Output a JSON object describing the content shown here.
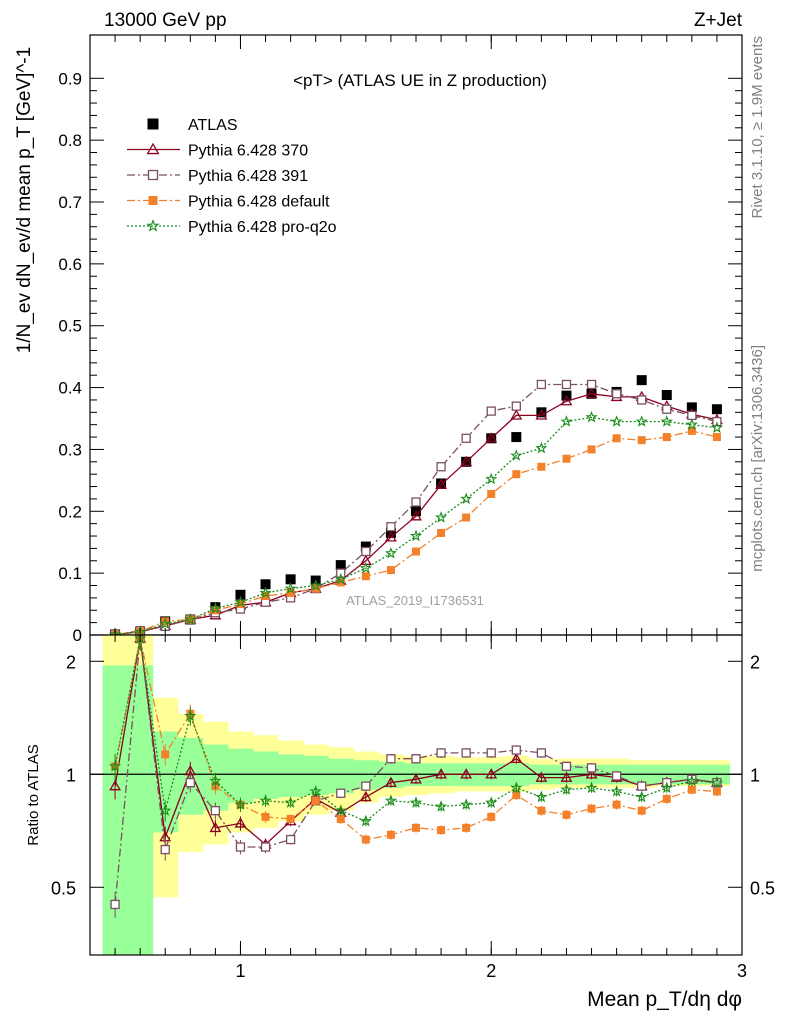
{
  "header": {
    "energy_label": "13000 GeV pp",
    "process_label": "Z+Jet"
  },
  "side_labels": {
    "right_top": "Rivet 3.1.10, ≥ 1.9M events",
    "right_bottom": "mcplots.cern.ch [arXiv:1306.3436]"
  },
  "chart_data": [
    {
      "type": "line",
      "panel": "main",
      "title": "<pT> (ATLAS UE in Z production)",
      "ylabel": "1/N_ev dN_ev/d mean p_T [GeV]^-1",
      "xlabel": "",
      "watermark": "ATLAS_2019_I1736531",
      "xlim": [
        0.4,
        3.0
      ],
      "ylim": [
        0,
        0.97
      ],
      "yticks": [
        0,
        0.1,
        0.2,
        0.3,
        0.4,
        0.5,
        0.6,
        0.7,
        0.8,
        0.9
      ],
      "ytick_labels": [
        "0",
        "0.1",
        "0.2",
        "0.3",
        "0.4",
        "0.5",
        "0.6",
        "0.7",
        "0.8",
        "0.9"
      ],
      "legend_position": "top-left",
      "x": [
        0.5,
        0.6,
        0.7,
        0.8,
        0.9,
        1.0,
        1.1,
        1.2,
        1.3,
        1.4,
        1.5,
        1.6,
        1.7,
        1.8,
        1.9,
        2.0,
        2.1,
        2.2,
        2.3,
        2.4,
        2.5,
        2.6,
        2.7,
        2.8,
        2.9
      ],
      "series": [
        {
          "name": "ATLAS",
          "color": "#000000",
          "marker": "filled-square",
          "line": "none",
          "values": [
            0.001,
            0.005,
            0.022,
            0.025,
            0.045,
            0.065,
            0.082,
            0.09,
            0.088,
            0.113,
            0.143,
            0.165,
            0.2,
            0.245,
            0.28,
            0.318,
            0.32,
            0.36,
            0.387,
            0.39,
            0.393,
            0.412,
            0.388,
            0.368,
            0.365
          ]
        },
        {
          "name": "Pythia 6.428 370",
          "color": "#8b0020",
          "marker": "open-triangle",
          "line": "solid",
          "values": [
            0.001,
            0.005,
            0.015,
            0.025,
            0.032,
            0.048,
            0.053,
            0.068,
            0.075,
            0.088,
            0.12,
            0.158,
            0.192,
            0.243,
            0.28,
            0.318,
            0.355,
            0.355,
            0.378,
            0.39,
            0.385,
            0.385,
            0.37,
            0.357,
            0.348
          ]
        },
        {
          "name": "Pythia 6.428 391",
          "color": "#7a5060",
          "marker": "open-square",
          "line": "dashdot",
          "values": [
            0.001,
            0.007,
            0.014,
            0.025,
            0.036,
            0.042,
            0.053,
            0.06,
            0.075,
            0.1,
            0.135,
            0.175,
            0.215,
            0.272,
            0.318,
            0.362,
            0.37,
            0.405,
            0.405,
            0.405,
            0.39,
            0.38,
            0.365,
            0.355,
            0.345
          ]
        },
        {
          "name": "Pythia 6.428 default",
          "color": "#f4802a",
          "marker": "filled-square",
          "line": "dashdot",
          "values": [
            0.001,
            0.006,
            0.022,
            0.025,
            0.04,
            0.05,
            0.063,
            0.068,
            0.075,
            0.085,
            0.095,
            0.105,
            0.135,
            0.165,
            0.19,
            0.228,
            0.26,
            0.272,
            0.285,
            0.3,
            0.318,
            0.315,
            0.32,
            0.33,
            0.32
          ]
        },
        {
          "name": "Pythia 6.428 pro-q2o",
          "color": "#1a8c1a",
          "marker": "star",
          "line": "dotted",
          "values": [
            0.001,
            0.005,
            0.018,
            0.025,
            0.043,
            0.053,
            0.068,
            0.075,
            0.08,
            0.09,
            0.108,
            0.132,
            0.16,
            0.19,
            0.22,
            0.252,
            0.29,
            0.302,
            0.345,
            0.352,
            0.345,
            0.345,
            0.345,
            0.34,
            0.335
          ]
        }
      ]
    },
    {
      "type": "line",
      "panel": "ratio",
      "ylabel": "Ratio to ATLAS",
      "xlabel": "Mean p_T/dη dφ",
      "xlim": [
        0.4,
        3.0
      ],
      "xticks": [
        1,
        2,
        3
      ],
      "xtick_labels": [
        "1",
        "2",
        "3"
      ],
      "ylim": [
        0.33,
        2.35
      ],
      "yticks": [
        0.5,
        1,
        2
      ],
      "ytick_labels": [
        "0.5",
        "1",
        "2"
      ],
      "uncertainty_bands": {
        "x_edges": [
          0.45,
          0.55,
          0.65,
          0.75,
          0.85,
          0.95,
          1.05,
          1.15,
          1.25,
          1.35,
          1.45,
          1.55,
          1.65,
          1.75,
          1.85,
          1.95,
          2.05,
          2.15,
          2.25,
          2.35,
          2.45,
          2.55,
          2.65,
          2.75,
          2.85,
          2.95
        ],
        "yellow_upper": [
          2.35,
          2.35,
          1.6,
          1.45,
          1.38,
          1.3,
          1.27,
          1.23,
          1.2,
          1.18,
          1.15,
          1.13,
          1.12,
          1.12,
          1.11,
          1.11,
          1.12,
          1.1,
          1.1,
          1.1,
          1.1,
          1.09,
          1.09,
          1.09,
          1.09
        ],
        "yellow_lower": [
          0.33,
          0.33,
          0.47,
          0.62,
          0.65,
          0.7,
          0.72,
          0.75,
          0.78,
          0.8,
          0.84,
          0.87,
          0.88,
          0.89,
          0.9,
          0.9,
          0.9,
          0.91,
          0.92,
          0.92,
          0.92,
          0.92,
          0.93,
          0.93,
          0.93
        ],
        "green_upper": [
          1.95,
          1.95,
          1.3,
          1.25,
          1.2,
          1.17,
          1.15,
          1.13,
          1.12,
          1.1,
          1.09,
          1.08,
          1.07,
          1.07,
          1.07,
          1.07,
          1.07,
          1.06,
          1.06,
          1.06,
          1.06,
          1.06,
          1.06,
          1.06,
          1.06
        ],
        "green_lower": [
          0.33,
          0.33,
          0.7,
          0.78,
          0.8,
          0.84,
          0.86,
          0.87,
          0.88,
          0.89,
          0.91,
          0.92,
          0.93,
          0.93,
          0.93,
          0.93,
          0.93,
          0.94,
          0.94,
          0.94,
          0.94,
          0.94,
          0.94,
          0.94,
          0.94
        ]
      },
      "x": [
        0.5,
        0.6,
        0.7,
        0.8,
        0.9,
        1.0,
        1.1,
        1.2,
        1.3,
        1.4,
        1.5,
        1.6,
        1.7,
        1.8,
        1.9,
        2.0,
        2.1,
        2.2,
        2.3,
        2.4,
        2.5,
        2.6,
        2.7,
        2.8,
        2.9
      ],
      "series": [
        {
          "name": "Pythia 6.428 370",
          "color": "#8b0020",
          "marker": "open-triangle",
          "line": "solid",
          "values": [
            0.93,
            2.3,
            0.68,
            1.02,
            0.72,
            0.74,
            0.65,
            0.75,
            0.86,
            0.79,
            0.87,
            0.95,
            0.97,
            1.0,
            1.0,
            1.0,
            1.1,
            0.98,
            0.98,
            1.0,
            0.98,
            0.93,
            0.95,
            0.97,
            0.95
          ]
        },
        {
          "name": "Pythia 6.428 391",
          "color": "#7a5060",
          "marker": "open-square",
          "line": "dashdot",
          "values": [
            0.45,
            2.3,
            0.63,
            0.95,
            0.8,
            0.64,
            0.64,
            0.67,
            0.85,
            0.89,
            0.93,
            1.1,
            1.1,
            1.14,
            1.14,
            1.14,
            1.16,
            1.14,
            1.05,
            1.04,
            0.99,
            0.93,
            0.95,
            0.97,
            0.95
          ]
        },
        {
          "name": "Pythia 6.428 default",
          "color": "#f4802a",
          "marker": "filled-square",
          "line": "dashdot",
          "values": [
            1.05,
            2.3,
            1.13,
            1.45,
            0.93,
            0.83,
            0.77,
            0.76,
            0.85,
            0.76,
            0.67,
            0.69,
            0.72,
            0.71,
            0.72,
            0.77,
            0.88,
            0.8,
            0.78,
            0.81,
            0.83,
            0.8,
            0.86,
            0.91,
            0.9
          ]
        },
        {
          "name": "Pythia 6.428 pro-q2o",
          "color": "#1a8c1a",
          "marker": "star",
          "line": "dotted",
          "values": [
            1.05,
            2.3,
            0.8,
            1.43,
            0.96,
            0.83,
            0.85,
            0.84,
            0.9,
            0.8,
            0.75,
            0.85,
            0.84,
            0.82,
            0.83,
            0.84,
            0.92,
            0.87,
            0.91,
            0.92,
            0.9,
            0.87,
            0.92,
            0.96,
            0.95
          ]
        }
      ]
    }
  ]
}
